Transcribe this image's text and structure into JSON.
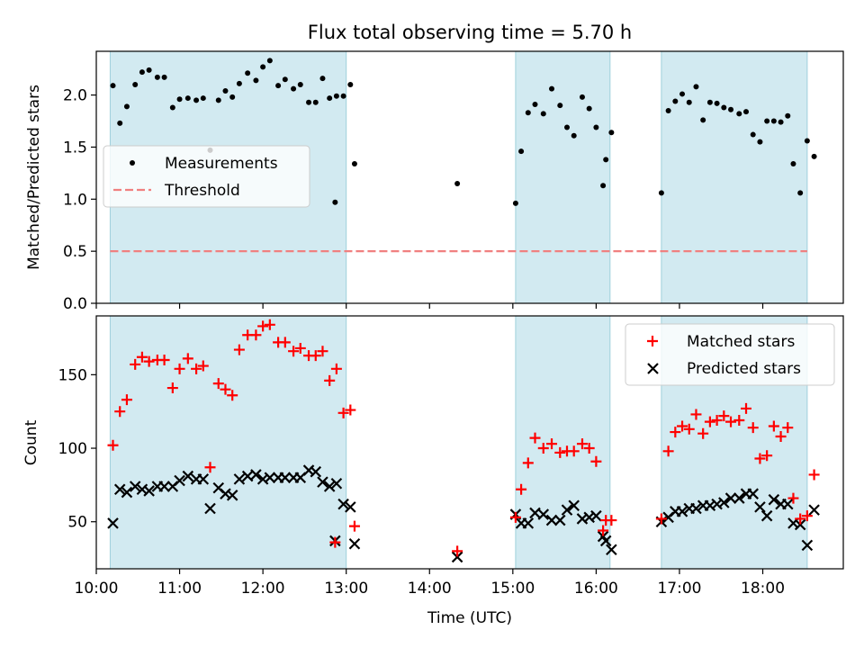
{
  "chart_data": [
    {
      "type": "scatter",
      "title": "Flux total observing time = 5.70 h",
      "xlabel": "",
      "ylabel": "Matched/Predicted stars",
      "xlim": [
        "10:00",
        "18:58"
      ],
      "ylim": [
        0,
        2.42
      ],
      "yticks": [
        "0.0",
        "0.5",
        "1.0",
        "1.5",
        "2.0"
      ],
      "grid": false,
      "legend": "upper-left",
      "colors": {
        "points": "#000000",
        "threshold": "#f08080",
        "span": "#add8e6"
      },
      "shaded_ranges": [
        [
          "10:10",
          "13:00"
        ],
        [
          "15:02",
          "16:10"
        ],
        [
          "16:47",
          "18:32"
        ]
      ],
      "threshold": {
        "name": "Threshold",
        "value": 0.5,
        "x_range": [
          "10:10",
          "18:32"
        ]
      },
      "series": [
        {
          "name": "Measurements",
          "points": [
            [
              "10:12",
              2.09
            ],
            [
              "10:17",
              1.73
            ],
            [
              "10:22",
              1.89
            ],
            [
              "10:28",
              2.1
            ],
            [
              "10:33",
              2.22
            ],
            [
              "10:38",
              2.24
            ],
            [
              "10:44",
              2.17
            ],
            [
              "10:49",
              2.17
            ],
            [
              "10:55",
              1.88
            ],
            [
              "11:00",
              1.96
            ],
            [
              "11:06",
              1.97
            ],
            [
              "11:12",
              1.95
            ],
            [
              "11:17",
              1.97
            ],
            [
              "11:22",
              1.47
            ],
            [
              "11:28",
              1.95
            ],
            [
              "11:33",
              2.04
            ],
            [
              "11:38",
              1.98
            ],
            [
              "11:43",
              2.11
            ],
            [
              "11:49",
              2.21
            ],
            [
              "11:55",
              2.14
            ],
            [
              "12:00",
              2.27
            ],
            [
              "12:05",
              2.33
            ],
            [
              "12:11",
              2.09
            ],
            [
              "12:16",
              2.15
            ],
            [
              "12:22",
              2.06
            ],
            [
              "12:27",
              2.1
            ],
            [
              "12:33",
              1.93
            ],
            [
              "12:38",
              1.93
            ],
            [
              "12:43",
              2.16
            ],
            [
              "12:48",
              1.97
            ],
            [
              "12:53",
              1.99
            ],
            [
              "12:58",
              1.99
            ],
            [
              "12:52",
              0.97
            ],
            [
              "13:03",
              2.1
            ],
            [
              "13:06",
              1.34
            ],
            [
              "14:20",
              1.15
            ],
            [
              "15:02",
              0.96
            ],
            [
              "15:06",
              1.46
            ],
            [
              "15:11",
              1.83
            ],
            [
              "15:16",
              1.91
            ],
            [
              "15:22",
              1.82
            ],
            [
              "15:28",
              2.06
            ],
            [
              "15:34",
              1.9
            ],
            [
              "15:39",
              1.69
            ],
            [
              "15:44",
              1.61
            ],
            [
              "15:50",
              1.98
            ],
            [
              "15:55",
              1.87
            ],
            [
              "16:00",
              1.69
            ],
            [
              "16:05",
              1.13
            ],
            [
              "16:07",
              1.38
            ],
            [
              "16:11",
              1.64
            ],
            [
              "16:47",
              1.06
            ],
            [
              "16:52",
              1.85
            ],
            [
              "16:57",
              1.94
            ],
            [
              "17:02",
              2.01
            ],
            [
              "17:07",
              1.93
            ],
            [
              "17:12",
              2.08
            ],
            [
              "17:17",
              1.76
            ],
            [
              "17:22",
              1.93
            ],
            [
              "17:27",
              1.92
            ],
            [
              "17:32",
              1.88
            ],
            [
              "17:37",
              1.86
            ],
            [
              "17:43",
              1.82
            ],
            [
              "17:48",
              1.84
            ],
            [
              "17:53",
              1.62
            ],
            [
              "17:58",
              1.55
            ],
            [
              "18:03",
              1.75
            ],
            [
              "18:08",
              1.75
            ],
            [
              "18:13",
              1.74
            ],
            [
              "18:18",
              1.8
            ],
            [
              "18:22",
              1.34
            ],
            [
              "18:27",
              1.06
            ],
            [
              "18:32",
              1.56
            ],
            [
              "18:37",
              1.41
            ]
          ]
        }
      ]
    },
    {
      "type": "scatter",
      "title": "",
      "xlabel": "Time (UTC)",
      "ylabel": "Count",
      "xlim": [
        "10:00",
        "18:58"
      ],
      "ylim": [
        18,
        190
      ],
      "xticks": [
        "10:00",
        "11:00",
        "12:00",
        "13:00",
        "14:00",
        "15:00",
        "16:00",
        "17:00",
        "18:00"
      ],
      "yticks": [
        "50",
        "100",
        "150"
      ],
      "grid": false,
      "legend": "upper-right",
      "colors": {
        "matched": "#ff0000",
        "predicted": "#000000",
        "span": "#add8e6"
      },
      "shaded_ranges": [
        [
          "10:10",
          "13:00"
        ],
        [
          "15:02",
          "16:10"
        ],
        [
          "16:47",
          "18:32"
        ]
      ],
      "series": [
        {
          "name": "Matched stars",
          "marker": "+",
          "points": [
            [
              "10:12",
              102
            ],
            [
              "10:17",
              125
            ],
            [
              "10:22",
              133
            ],
            [
              "10:28",
              157
            ],
            [
              "10:33",
              162
            ],
            [
              "10:38",
              159
            ],
            [
              "10:44",
              160
            ],
            [
              "10:49",
              160
            ],
            [
              "10:55",
              141
            ],
            [
              "11:00",
              154
            ],
            [
              "11:06",
              161
            ],
            [
              "11:12",
              154
            ],
            [
              "11:17",
              156
            ],
            [
              "11:22",
              87
            ],
            [
              "11:28",
              144
            ],
            [
              "11:33",
              140
            ],
            [
              "11:38",
              136
            ],
            [
              "11:43",
              167
            ],
            [
              "11:49",
              177
            ],
            [
              "11:55",
              177
            ],
            [
              "12:00",
              183
            ],
            [
              "12:05",
              184
            ],
            [
              "12:11",
              172
            ],
            [
              "12:16",
              172
            ],
            [
              "12:22",
              166
            ],
            [
              "12:27",
              168
            ],
            [
              "12:33",
              163
            ],
            [
              "12:38",
              163
            ],
            [
              "12:43",
              166
            ],
            [
              "12:48",
              146
            ],
            [
              "12:53",
              154
            ],
            [
              "12:58",
              124
            ],
            [
              "12:52",
              36
            ],
            [
              "13:03",
              126
            ],
            [
              "13:06",
              47
            ],
            [
              "14:20",
              30
            ],
            [
              "15:02",
              53
            ],
            [
              "15:06",
              72
            ],
            [
              "15:11",
              90
            ],
            [
              "15:16",
              107
            ],
            [
              "15:22",
              100
            ],
            [
              "15:28",
              103
            ],
            [
              "15:34",
              97
            ],
            [
              "15:39",
              98
            ],
            [
              "15:44",
              98
            ],
            [
              "15:50",
              103
            ],
            [
              "15:55",
              100
            ],
            [
              "16:00",
              91
            ],
            [
              "16:05",
              44
            ],
            [
              "16:07",
              51
            ],
            [
              "16:11",
              51
            ],
            [
              "16:47",
              52
            ],
            [
              "16:52",
              98
            ],
            [
              "16:57",
              111
            ],
            [
              "17:02",
              115
            ],
            [
              "17:07",
              113
            ],
            [
              "17:12",
              123
            ],
            [
              "17:17",
              110
            ],
            [
              "17:22",
              118
            ],
            [
              "17:27",
              119
            ],
            [
              "17:32",
              122
            ],
            [
              "17:37",
              118
            ],
            [
              "17:43",
              119
            ],
            [
              "17:48",
              127
            ],
            [
              "17:53",
              114
            ],
            [
              "17:58",
              93
            ],
            [
              "18:03",
              95
            ],
            [
              "18:08",
              115
            ],
            [
              "18:13",
              108
            ],
            [
              "18:18",
              114
            ],
            [
              "18:22",
              66
            ],
            [
              "18:27",
              52
            ],
            [
              "18:32",
              54
            ],
            [
              "18:37",
              82
            ]
          ]
        },
        {
          "name": "Predicted stars",
          "marker": "x",
          "points": [
            [
              "10:12",
              49
            ],
            [
              "10:17",
              72
            ],
            [
              "10:22",
              70
            ],
            [
              "10:28",
              74
            ],
            [
              "10:33",
              72
            ],
            [
              "10:38",
              71
            ],
            [
              "10:44",
              74
            ],
            [
              "10:49",
              74
            ],
            [
              "10:55",
              74
            ],
            [
              "11:00",
              78
            ],
            [
              "11:06",
              81
            ],
            [
              "11:12",
              79
            ],
            [
              "11:17",
              79
            ],
            [
              "11:22",
              59
            ],
            [
              "11:28",
              73
            ],
            [
              "11:33",
              69
            ],
            [
              "11:38",
              68
            ],
            [
              "11:43",
              79
            ],
            [
              "11:49",
              81
            ],
            [
              "11:55",
              82
            ],
            [
              "12:00",
              79
            ],
            [
              "12:05",
              80
            ],
            [
              "12:11",
              80
            ],
            [
              "12:16",
              80
            ],
            [
              "12:22",
              80
            ],
            [
              "12:27",
              80
            ],
            [
              "12:33",
              85
            ],
            [
              "12:38",
              84
            ],
            [
              "12:43",
              77
            ],
            [
              "12:48",
              74
            ],
            [
              "12:53",
              76
            ],
            [
              "12:58",
              62
            ],
            [
              "12:52",
              37
            ],
            [
              "13:03",
              60
            ],
            [
              "13:06",
              35
            ],
            [
              "14:20",
              26
            ],
            [
              "15:02",
              55
            ],
            [
              "15:06",
              49
            ],
            [
              "15:11",
              49
            ],
            [
              "15:16",
              56
            ],
            [
              "15:22",
              55
            ],
            [
              "15:28",
              51
            ],
            [
              "15:34",
              51
            ],
            [
              "15:39",
              58
            ],
            [
              "15:44",
              61
            ],
            [
              "15:50",
              52
            ],
            [
              "15:55",
              53
            ],
            [
              "16:00",
              54
            ],
            [
              "16:05",
              40
            ],
            [
              "16:07",
              37
            ],
            [
              "16:11",
              31
            ],
            [
              "16:47",
              50
            ],
            [
              "16:52",
              53
            ],
            [
              "16:57",
              57
            ],
            [
              "17:02",
              57
            ],
            [
              "17:07",
              59
            ],
            [
              "17:12",
              59
            ],
            [
              "17:17",
              61
            ],
            [
              "17:22",
              61
            ],
            [
              "17:27",
              62
            ],
            [
              "17:32",
              63
            ],
            [
              "17:37",
              66
            ],
            [
              "17:43",
              66
            ],
            [
              "17:48",
              69
            ],
            [
              "17:53",
              69
            ],
            [
              "17:58",
              60
            ],
            [
              "18:03",
              54
            ],
            [
              "18:08",
              65
            ],
            [
              "18:13",
              62
            ],
            [
              "18:18",
              62
            ],
            [
              "18:22",
              49
            ],
            [
              "18:27",
              48
            ],
            [
              "18:32",
              34
            ],
            [
              "18:37",
              58
            ]
          ]
        }
      ]
    }
  ]
}
